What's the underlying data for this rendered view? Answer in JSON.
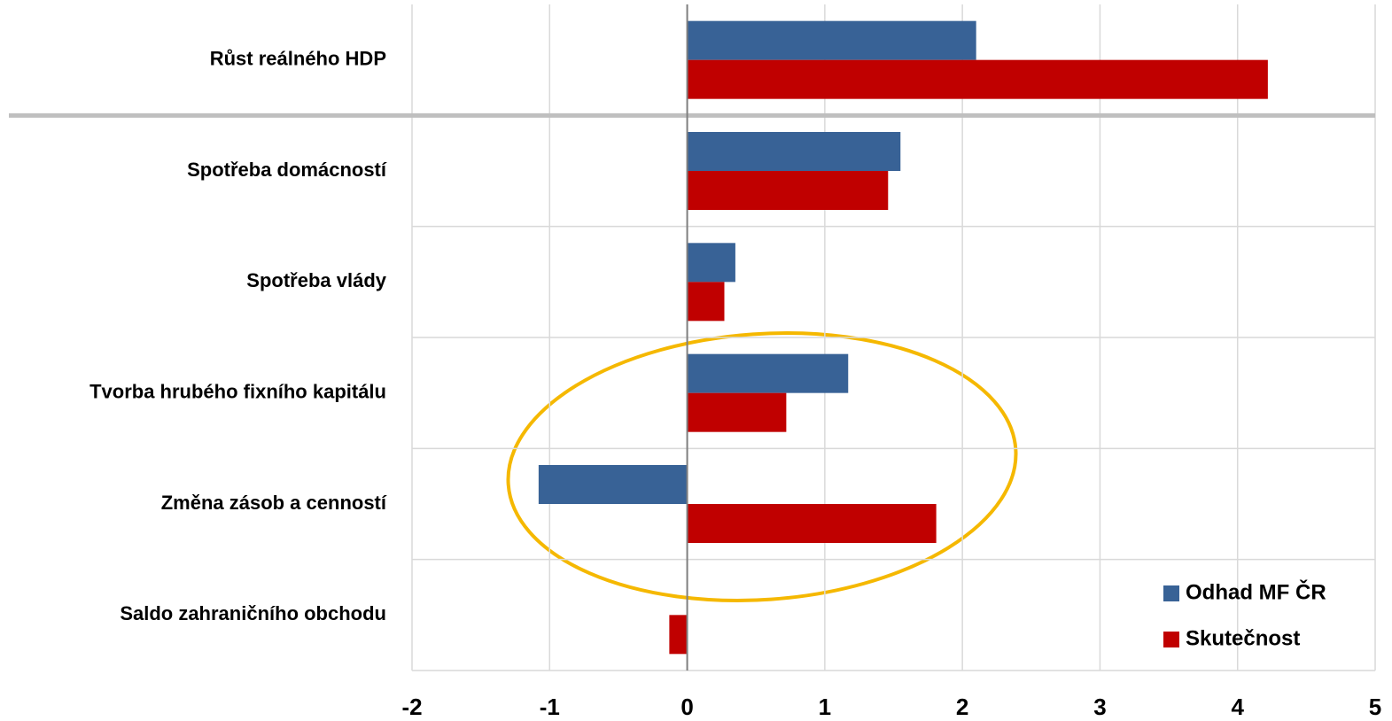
{
  "chart_data": {
    "type": "bar",
    "orientation": "horizontal",
    "categories": [
      "Růst reálného HDP",
      "Spotřeba domácností ",
      "Spotřeba vlády",
      "Tvorba hrubého fixního kapitálu",
      "Změna zásob a cenností",
      "Saldo zahraničního obchodu"
    ],
    "series": [
      {
        "name": "Odhad MF ČR",
        "color": "#386296",
        "values": [
          2.1,
          1.55,
          0.35,
          1.17,
          -1.08,
          0
        ]
      },
      {
        "name": "Skutečnost",
        "color": "#c00000",
        "values": [
          4.22,
          1.46,
          0.27,
          0.72,
          1.81,
          -0.13
        ]
      }
    ],
    "xlim": [
      -2,
      5
    ],
    "xticks": [
      -2,
      -1,
      0,
      1,
      2,
      3,
      4,
      5
    ],
    "grid": true,
    "legend": "lower right"
  }
}
